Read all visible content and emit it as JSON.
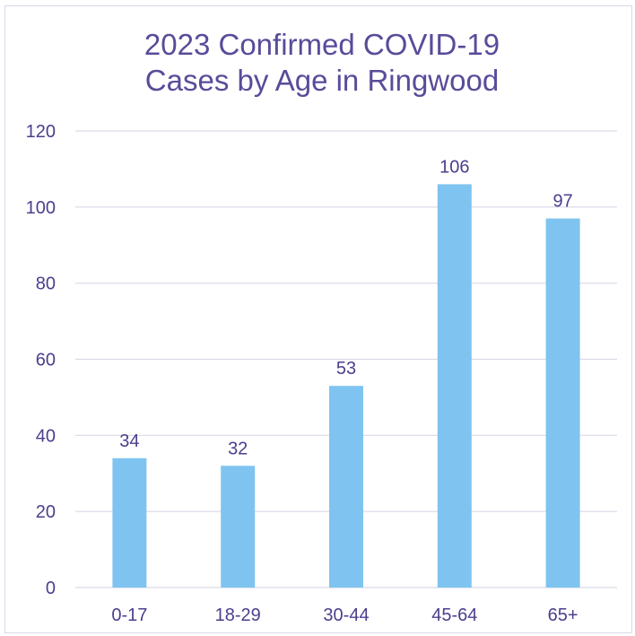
{
  "chart_data": {
    "type": "bar",
    "title_lines": [
      "2023 Confirmed COVID-19",
      "Cases by Age in Ringwood"
    ],
    "categories": [
      "0-17",
      "18-29",
      "30-44",
      "45-64",
      "65+"
    ],
    "values": [
      34,
      32,
      53,
      106,
      97
    ],
    "xlabel": "",
    "ylabel": "",
    "ylim": [
      0,
      120
    ],
    "yticks": [
      0,
      20,
      40,
      60,
      80,
      100,
      120
    ],
    "grid": true,
    "legend": "none",
    "bar_color": "#7fc4f0",
    "gridline_color": "#d9d9e8",
    "text_color": "#4a3f8c",
    "title_color": "#5a4b9a"
  }
}
